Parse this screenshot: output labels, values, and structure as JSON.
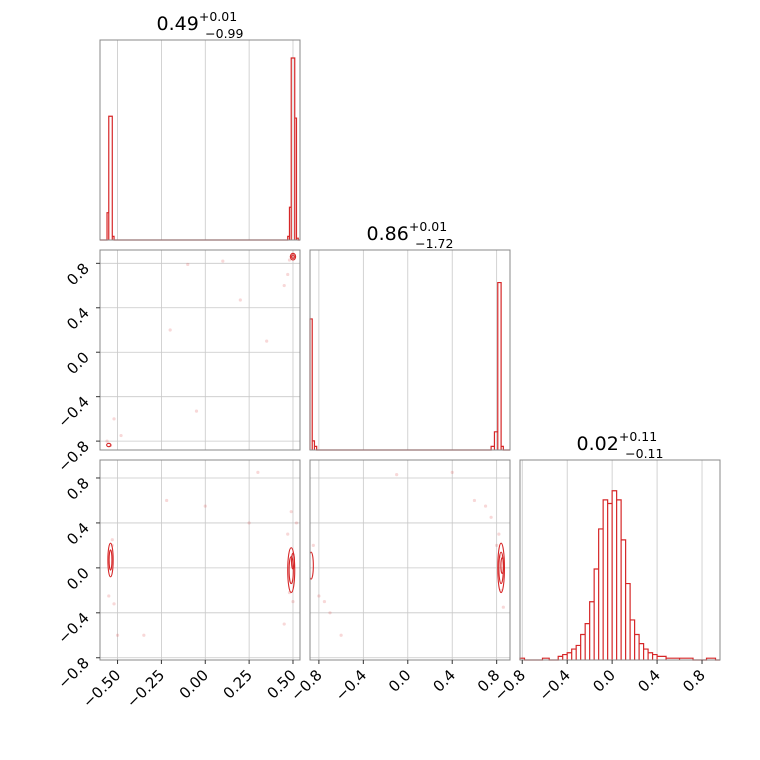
{
  "chart_data": {
    "type": "corner",
    "color": "#d62728",
    "parameters": [
      {
        "median": "0.49",
        "plus": "+0.01",
        "minus": "−0.99"
      },
      {
        "median": "0.86",
        "plus": "+0.01",
        "minus": "−1.72"
      },
      {
        "median": "0.02",
        "plus": "+0.11",
        "minus": "−0.11"
      }
    ],
    "ticks": {
      "p0": [
        {
          "v": -0.5,
          "label": "−0.50"
        },
        {
          "v": -0.25,
          "label": "−0.25"
        },
        {
          "v": 0.0,
          "label": "0.00"
        },
        {
          "v": 0.25,
          "label": "0.25"
        },
        {
          "v": 0.5,
          "label": "0.50"
        }
      ],
      "p1": [
        {
          "v": -0.8,
          "label": "−0.8"
        },
        {
          "v": -0.4,
          "label": "−0.4"
        },
        {
          "v": 0.0,
          "label": "0.0"
        },
        {
          "v": 0.4,
          "label": "0.4"
        },
        {
          "v": 0.8,
          "label": "0.8"
        }
      ],
      "p2": [
        {
          "v": -0.8,
          "label": "−0.8"
        },
        {
          "v": -0.4,
          "label": "−0.4"
        },
        {
          "v": 0.0,
          "label": "0.0"
        },
        {
          "v": 0.4,
          "label": "0.4"
        },
        {
          "v": 0.8,
          "label": "0.8"
        }
      ]
    },
    "ranges": {
      "p0": [
        -0.6,
        0.54
      ],
      "p1": [
        -0.88,
        0.92
      ],
      "p2": [
        -0.82,
        0.96
      ]
    },
    "histograms": {
      "p0": [
        {
          "x": [
            -0.56,
            -0.55
          ],
          "h": 0.15
        },
        {
          "x": [
            -0.55,
            -0.53
          ],
          "h": 0.68
        },
        {
          "x": [
            -0.53,
            -0.52
          ],
          "h": 0.02
        },
        {
          "x": [
            0.47,
            0.48
          ],
          "h": 0.02
        },
        {
          "x": [
            0.48,
            0.49
          ],
          "h": 0.18
        },
        {
          "x": [
            0.49,
            0.51
          ],
          "h": 1.0
        },
        {
          "x": [
            0.51,
            0.52
          ],
          "h": 0.67
        },
        {
          "x": [
            0.52,
            0.53
          ],
          "h": 0.01
        }
      ],
      "p1": [
        {
          "x": [
            -0.88,
            -0.86
          ],
          "h": 0.72
        },
        {
          "x": [
            -0.86,
            -0.84
          ],
          "h": 0.05
        },
        {
          "x": [
            -0.84,
            -0.82
          ],
          "h": 0.02
        },
        {
          "x": [
            0.75,
            0.78
          ],
          "h": 0.02
        },
        {
          "x": [
            0.78,
            0.81
          ],
          "h": 0.1
        },
        {
          "x": [
            0.81,
            0.84
          ],
          "h": 0.92
        },
        {
          "x": [
            0.84,
            0.86
          ],
          "h": 0.02
        }
      ],
      "p2": [
        {
          "x": [
            -0.82,
            -0.78
          ],
          "h": 0.01
        },
        {
          "x": [
            -0.62,
            -0.56
          ],
          "h": 0.01
        },
        {
          "x": [
            -0.48,
            -0.44
          ],
          "h": 0.02
        },
        {
          "x": [
            -0.44,
            -0.4
          ],
          "h": 0.03
        },
        {
          "x": [
            -0.4,
            -0.36
          ],
          "h": 0.04
        },
        {
          "x": [
            -0.36,
            -0.32
          ],
          "h": 0.06
        },
        {
          "x": [
            -0.32,
            -0.28
          ],
          "h": 0.08
        },
        {
          "x": [
            -0.28,
            -0.24
          ],
          "h": 0.14
        },
        {
          "x": [
            -0.24,
            -0.2
          ],
          "h": 0.2
        },
        {
          "x": [
            -0.2,
            -0.16
          ],
          "h": 0.32
        },
        {
          "x": [
            -0.16,
            -0.12
          ],
          "h": 0.5
        },
        {
          "x": [
            -0.12,
            -0.08
          ],
          "h": 0.72
        },
        {
          "x": [
            -0.08,
            -0.04
          ],
          "h": 0.88
        },
        {
          "x": [
            -0.04,
            0.0
          ],
          "h": 0.86
        },
        {
          "x": [
            0.0,
            0.04
          ],
          "h": 0.93
        },
        {
          "x": [
            0.04,
            0.08
          ],
          "h": 0.88
        },
        {
          "x": [
            0.08,
            0.12
          ],
          "h": 0.66
        },
        {
          "x": [
            0.12,
            0.16
          ],
          "h": 0.42
        },
        {
          "x": [
            0.16,
            0.2
          ],
          "h": 0.22
        },
        {
          "x": [
            0.2,
            0.24
          ],
          "h": 0.14
        },
        {
          "x": [
            0.24,
            0.28
          ],
          "h": 0.09
        },
        {
          "x": [
            0.28,
            0.32
          ],
          "h": 0.06
        },
        {
          "x": [
            0.32,
            0.36
          ],
          "h": 0.04
        },
        {
          "x": [
            0.36,
            0.4
          ],
          "h": 0.03
        },
        {
          "x": [
            0.4,
            0.48
          ],
          "h": 0.02
        },
        {
          "x": [
            0.48,
            0.6
          ],
          "h": 0.01
        },
        {
          "x": [
            0.6,
            0.72
          ],
          "h": 0.01
        },
        {
          "x": [
            0.84,
            0.92
          ],
          "h": 0.01
        }
      ]
    },
    "scatter": {
      "p0_p1": [
        [
          -0.1,
          0.79
        ],
        [
          0.1,
          0.82
        ],
        [
          0.2,
          0.47
        ],
        [
          -0.05,
          -0.53
        ],
        [
          -0.52,
          -0.6
        ],
        [
          -0.48,
          -0.75
        ],
        [
          0.45,
          0.6
        ],
        [
          -0.2,
          0.2
        ],
        [
          0.35,
          0.1
        ],
        [
          0.47,
          0.7
        ],
        [
          -0.54,
          -0.84
        ],
        [
          -0.56,
          -0.8
        ],
        [
          0.49,
          0.86
        ],
        [
          0.5,
          0.87
        ],
        [
          0.48,
          0.83
        ]
      ],
      "p0_p2": [
        [
          -0.53,
          0.25
        ],
        [
          -0.55,
          -0.25
        ],
        [
          -0.52,
          -0.32
        ],
        [
          -0.5,
          -0.6
        ],
        [
          -0.53,
          0.2
        ],
        [
          -0.35,
          -0.6
        ],
        [
          0.0,
          0.55
        ],
        [
          0.3,
          0.85
        ],
        [
          -0.22,
          0.6
        ],
        [
          0.49,
          0.5
        ],
        [
          0.47,
          0.3
        ],
        [
          0.5,
          -0.3
        ],
        [
          0.48,
          -0.22
        ],
        [
          0.52,
          0.4
        ],
        [
          0.45,
          -0.5
        ],
        [
          0.25,
          0.4
        ]
      ],
      "p1_p2": [
        [
          -0.85,
          0.2
        ],
        [
          -0.8,
          -0.25
        ],
        [
          -0.7,
          -0.4
        ],
        [
          -0.75,
          -0.3
        ],
        [
          -0.6,
          -0.6
        ],
        [
          -0.1,
          0.83
        ],
        [
          0.4,
          0.85
        ],
        [
          0.6,
          0.6
        ],
        [
          0.75,
          0.45
        ],
        [
          0.82,
          0.3
        ],
        [
          0.84,
          -0.2
        ],
        [
          0.8,
          0.2
        ],
        [
          0.86,
          -0.35
        ],
        [
          0.83,
          0.1
        ],
        [
          0.7,
          0.55
        ]
      ]
    },
    "contours": {
      "p0_p1": [
        {
          "c": [
            0.5,
            0.86
          ],
          "r": [
            0.015,
            0.03
          ]
        },
        {
          "c": [
            0.5,
            0.86
          ],
          "r": [
            0.008,
            0.015
          ]
        },
        {
          "c": [
            -0.55,
            -0.835
          ],
          "r": [
            0.012,
            0.015
          ]
        }
      ],
      "p0_p2": [
        {
          "c": [
            -0.54,
            0.07
          ],
          "r": [
            0.015,
            0.15
          ]
        },
        {
          "c": [
            -0.54,
            0.07
          ],
          "r": [
            0.008,
            0.09
          ]
        },
        {
          "c": [
            0.49,
            -0.02
          ],
          "r": [
            0.02,
            0.2
          ]
        },
        {
          "c": [
            0.49,
            -0.02
          ],
          "r": [
            0.012,
            0.12
          ]
        },
        {
          "c": [
            0.5,
            0.06
          ],
          "r": [
            0.008,
            0.07
          ]
        }
      ],
      "p1_p2": [
        {
          "c": [
            -0.87,
            0.02
          ],
          "r": [
            0.02,
            0.12
          ]
        },
        {
          "c": [
            0.84,
            0.0
          ],
          "r": [
            0.03,
            0.22
          ]
        },
        {
          "c": [
            0.84,
            0.0
          ],
          "r": [
            0.02,
            0.14
          ]
        },
        {
          "c": [
            0.85,
            0.02
          ],
          "r": [
            0.012,
            0.07
          ]
        }
      ]
    }
  }
}
